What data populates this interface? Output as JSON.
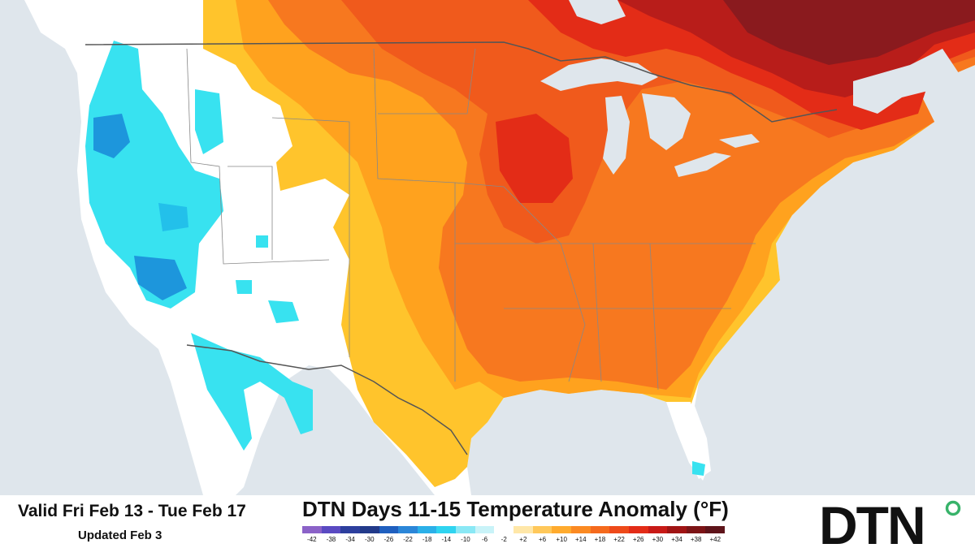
{
  "header": {
    "valid_text": "Valid Fri Feb 13 - Tue Feb 17",
    "updated_text": "Updated Feb 3",
    "title": "DTN Days 11-15 Temperature Anomaly (°F)"
  },
  "logo": {
    "text": "DTN"
  },
  "legend": {
    "ticks": [
      "-42",
      "-38",
      "-34",
      "-30",
      "-26",
      "-22",
      "-18",
      "-14",
      "-10",
      "-6",
      "-2",
      "+2",
      "+6",
      "+10",
      "+14",
      "+18",
      "+22",
      "+26",
      "+30",
      "+34",
      "+38",
      "+42"
    ],
    "colors": [
      "#8b62c8",
      "#5a4ac2",
      "#2d3f9e",
      "#223a8a",
      "#1f5fbf",
      "#2b86d8",
      "#2bb0e8",
      "#2fd4f0",
      "#8ae8f5",
      "#c9f3f8",
      "#ffffff",
      "#ffe7a8",
      "#ffc85a",
      "#ffab2e",
      "#fb8a22",
      "#f56a1d",
      "#ee4a1a",
      "#e32c17",
      "#c81a17",
      "#a01414",
      "#7c1416",
      "#5e141a"
    ]
  },
  "map_colors": {
    "ocean": "#dfe6ec",
    "land_neutral": "#ffffff",
    "cool_light": "#38e2f0",
    "cool_mid": "#23c0ea",
    "cool_dark": "#1d96dc",
    "warm_yellow": "#ffc42c",
    "warm_orange": "#ffa21e",
    "warm_deep_orange": "#f7781f",
    "warm_red_orange": "#f05a1c",
    "warm_red": "#e32c17",
    "warm_dark_red": "#b81d1a",
    "warm_darkest": "#8a1a1e",
    "water_lakes": "#dfe6ec",
    "border": "#555555"
  }
}
